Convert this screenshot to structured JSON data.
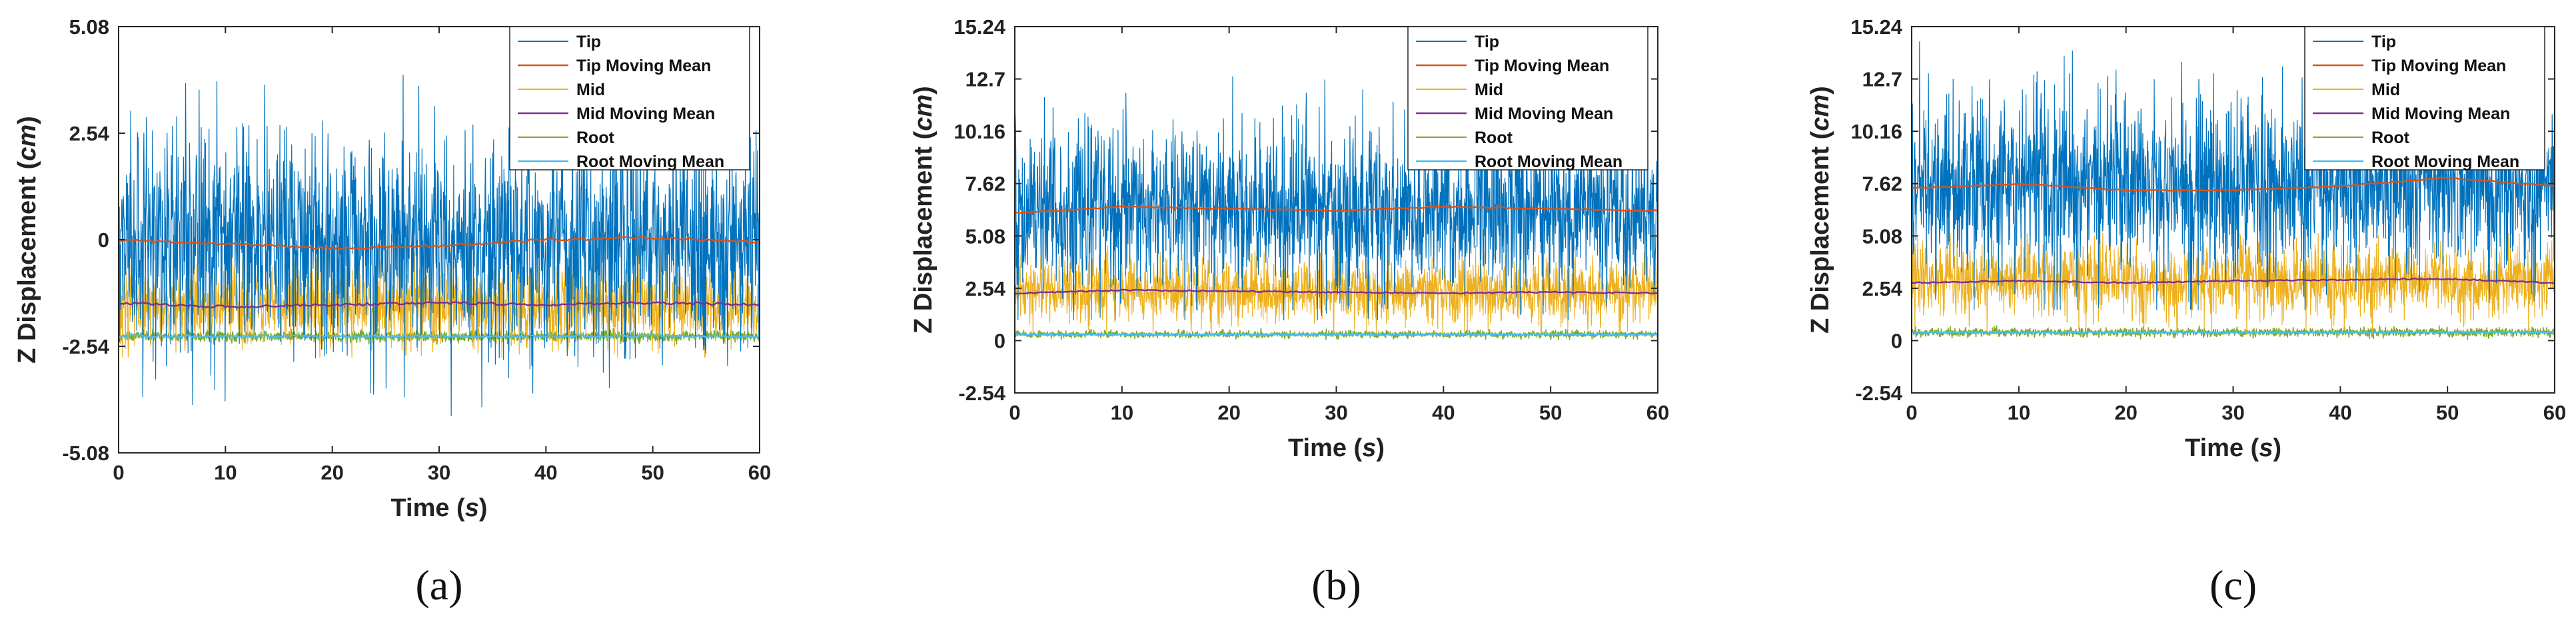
{
  "colors": {
    "tip": "#0072BD",
    "tip_mean": "#D95319",
    "mid": "#EDB120",
    "mid_mean": "#7E2F8E",
    "root": "#77AC30",
    "root_mean": "#4DBEEE"
  },
  "chart_data": [
    {
      "type": "line",
      "caption": "(a)",
      "caption_letter": "a",
      "xlabel": "Time",
      "xlabel_unit": "s",
      "ylabel": "Z Displacement",
      "ylabel_unit": "cm",
      "xlim": [
        0,
        60
      ],
      "ylim": [
        -5.08,
        5.08
      ],
      "xticks": [
        0,
        10,
        20,
        30,
        40,
        50,
        60
      ],
      "xtick_labels": [
        "0",
        "10",
        "20",
        "30",
        "40",
        "50",
        "60"
      ],
      "yticks": [
        -5.08,
        -2.54,
        0,
        2.54,
        5.08
      ],
      "ytick_labels": [
        "-5.08",
        "-2.54",
        "0",
        "2.54",
        "5.08"
      ],
      "legend_position": "top-right",
      "legend": [
        "Tip",
        "Tip Moving Mean",
        "Mid",
        "Mid Moving Mean",
        "Root",
        "Root Moving Mean"
      ],
      "series": [
        {
          "name": "Tip",
          "key": "tip",
          "mean": 0.0,
          "spread": 1.25,
          "min": -4.3,
          "max": 4.1
        },
        {
          "name": "Tip Moving Mean",
          "key": "tip_mean",
          "values": [
            0.0,
            -0.1,
            -0.2,
            -0.15,
            0.0,
            0.05,
            -0.05
          ]
        },
        {
          "name": "Mid",
          "key": "mid",
          "mean": -1.55,
          "spread": 0.45,
          "min": -2.8,
          "max": -0.2
        },
        {
          "name": "Mid Moving Mean",
          "key": "mid_mean",
          "values": [
            -1.5,
            -1.6,
            -1.55,
            -1.5,
            -1.55,
            -1.5,
            -1.55
          ]
        },
        {
          "name": "Root",
          "key": "root",
          "mean": -2.3,
          "spread": 0.06,
          "min": -2.5,
          "max": -2.1
        },
        {
          "name": "Root Moving Mean",
          "key": "root_mean",
          "values": [
            -2.3,
            -2.3,
            -2.3,
            -2.3,
            -2.3,
            -2.3,
            -2.3
          ]
        }
      ]
    },
    {
      "type": "line",
      "caption": "(b)",
      "caption_letter": "b",
      "xlabel": "Time",
      "xlabel_unit": "s",
      "ylabel": "Z Displacement",
      "ylabel_unit": "cm",
      "xlim": [
        0,
        60
      ],
      "ylim": [
        -2.54,
        15.24
      ],
      "xticks": [
        0,
        10,
        20,
        30,
        40,
        50,
        60
      ],
      "xtick_labels": [
        "0",
        "10",
        "20",
        "30",
        "40",
        "50",
        "60"
      ],
      "yticks": [
        -2.54,
        0,
        2.54,
        5.08,
        7.62,
        10.16,
        12.7,
        15.24
      ],
      "ytick_labels": [
        "-2.54",
        "0",
        "2.54",
        "5.08",
        "7.62",
        "10.16",
        "12.7",
        "15.24"
      ],
      "legend_position": "top-right",
      "legend": [
        "Tip",
        "Tip Moving Mean",
        "Mid",
        "Mid Moving Mean",
        "Root",
        "Root Moving Mean"
      ],
      "series": [
        {
          "name": "Tip",
          "key": "tip",
          "mean": 6.3,
          "spread": 2.0,
          "min": 1.0,
          "max": 13.5
        },
        {
          "name": "Tip Moving Mean",
          "key": "tip_mean",
          "values": [
            6.2,
            6.5,
            6.4,
            6.3,
            6.5,
            6.4,
            6.3
          ]
        },
        {
          "name": "Mid",
          "key": "mid",
          "mean": 2.4,
          "spread": 0.75,
          "min": 0.2,
          "max": 4.6
        },
        {
          "name": "Mid Moving Mean",
          "key": "mid_mean",
          "values": [
            2.3,
            2.45,
            2.4,
            2.35,
            2.3,
            2.35,
            2.3
          ]
        },
        {
          "name": "Root",
          "key": "root",
          "mean": 0.3,
          "spread": 0.08,
          "min": 0.0,
          "max": 0.6
        },
        {
          "name": "Root Moving Mean",
          "key": "root_mean",
          "values": [
            0.3,
            0.3,
            0.3,
            0.3,
            0.3,
            0.3,
            0.3
          ]
        }
      ]
    },
    {
      "type": "line",
      "caption": "(c)",
      "caption_letter": "c",
      "xlabel": "Time",
      "xlabel_unit": "s",
      "ylabel": "Z Displacement",
      "ylabel_unit": "cm",
      "xlim": [
        0,
        60
      ],
      "ylim": [
        -2.54,
        15.24
      ],
      "xticks": [
        0,
        10,
        20,
        30,
        40,
        50,
        60
      ],
      "xtick_labels": [
        "0",
        "10",
        "20",
        "30",
        "40",
        "50",
        "60"
      ],
      "yticks": [
        -2.54,
        0,
        2.54,
        5.08,
        7.62,
        10.16,
        12.7,
        15.24
      ],
      "ytick_labels": [
        "-2.54",
        "0",
        "2.54",
        "5.08",
        "7.62",
        "10.16",
        "12.7",
        "15.24"
      ],
      "legend_position": "top-right",
      "legend": [
        "Tip",
        "Tip Moving Mean",
        "Mid",
        "Mid Moving Mean",
        "Root",
        "Root Moving Mean"
      ],
      "series": [
        {
          "name": "Tip",
          "key": "tip",
          "mean": 7.5,
          "spread": 2.2,
          "min": 1.5,
          "max": 14.5
        },
        {
          "name": "Tip Moving Mean",
          "key": "tip_mean",
          "values": [
            7.4,
            7.6,
            7.3,
            7.3,
            7.5,
            7.9,
            7.5
          ]
        },
        {
          "name": "Mid",
          "key": "mid",
          "mean": 2.9,
          "spread": 0.85,
          "min": 0.3,
          "max": 5.2
        },
        {
          "name": "Mid Moving Mean",
          "key": "mid_mean",
          "values": [
            2.8,
            2.9,
            2.8,
            2.9,
            2.95,
            3.0,
            2.8
          ]
        },
        {
          "name": "Root",
          "key": "root",
          "mean": 0.4,
          "spread": 0.1,
          "min": 0.0,
          "max": 0.8
        },
        {
          "name": "Root Moving Mean",
          "key": "root_mean",
          "values": [
            0.4,
            0.4,
            0.4,
            0.4,
            0.4,
            0.4,
            0.4
          ]
        }
      ]
    }
  ]
}
